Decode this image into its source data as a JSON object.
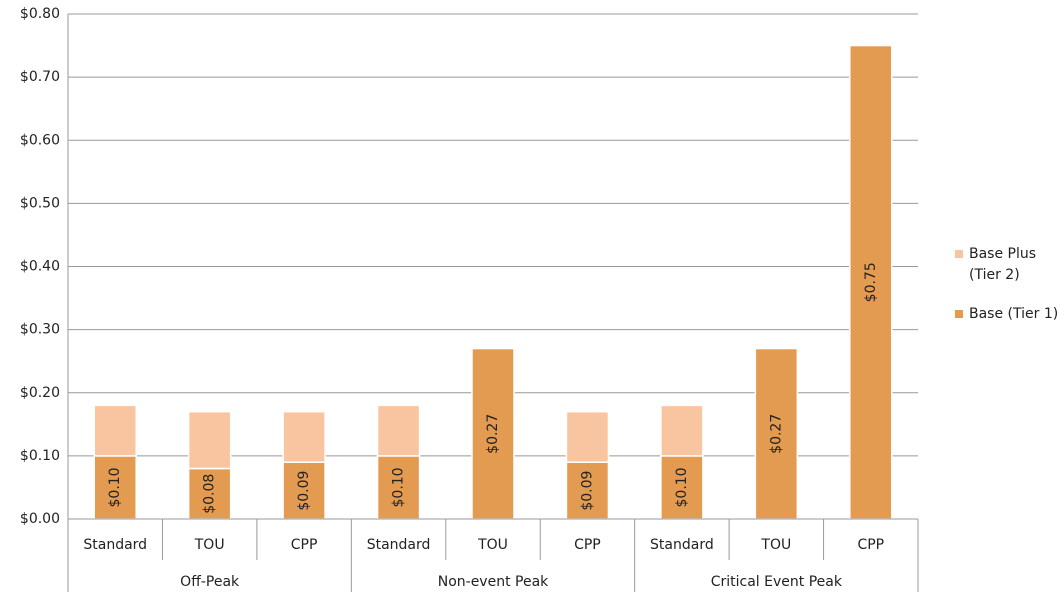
{
  "chart_data": {
    "type": "stacked-bar",
    "categories": [
      "Standard",
      "TOU",
      "CPP",
      "Standard",
      "TOU",
      "CPP",
      "Standard",
      "TOU",
      "CPP"
    ],
    "groups": [
      "Off-Peak",
      "Non-event Peak",
      "Critical Event Peak"
    ],
    "series": [
      {
        "name": "Base (Tier 1)",
        "color": "#e39b52",
        "values": [
          0.1,
          0.08,
          0.09,
          0.1,
          0.27,
          0.09,
          0.1,
          0.27,
          0.75
        ],
        "value_labels": [
          "$0.10",
          "$0.08",
          "$0.09",
          "$0.10",
          "$0.27",
          "$0.09",
          "$0.10",
          "$0.27",
          "$0.75"
        ]
      },
      {
        "name": "Base Plus (Tier 2)",
        "color": "#f9c4a0",
        "values": [
          0.08,
          0.09,
          0.08,
          0.08,
          null,
          0.08,
          0.08,
          null,
          null
        ]
      }
    ],
    "ylim": [
      0,
      0.8
    ],
    "yticks": [
      {
        "value": 0,
        "label": "$0.00"
      },
      {
        "value": 0.1,
        "label": "$0.10"
      },
      {
        "value": 0.2,
        "label": "$0.20"
      },
      {
        "value": 0.3,
        "label": "$0.30"
      },
      {
        "value": 0.4,
        "label": "$0.40"
      },
      {
        "value": 0.5,
        "label": "$0.50"
      },
      {
        "value": 0.6,
        "label": "$0.60"
      },
      {
        "value": 0.7,
        "label": "$0.70"
      },
      {
        "value": 0.8,
        "label": "$0.80"
      }
    ],
    "grid": true,
    "legend": "right"
  }
}
